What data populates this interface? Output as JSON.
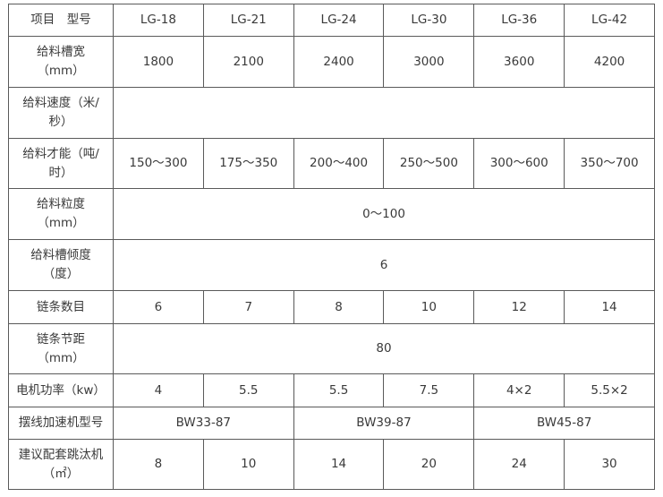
{
  "table": {
    "header": [
      "项目　型号",
      "LG-18",
      "LG-21",
      "LG-24",
      "LG-30",
      "LG-36",
      "LG-42"
    ],
    "rows": [
      {
        "label": "给料槽宽\n（mm）",
        "cells": [
          {
            "v": "1800"
          },
          {
            "v": "2100"
          },
          {
            "v": "2400"
          },
          {
            "v": "3000"
          },
          {
            "v": "3600"
          },
          {
            "v": "4200"
          }
        ]
      },
      {
        "label": "给料速度（米/\n秒）",
        "cells": [
          {
            "v": "",
            "span": 6
          }
        ]
      },
      {
        "label": "给料才能（吨/\n时）",
        "cells": [
          {
            "v": "150～300"
          },
          {
            "v": "175～350"
          },
          {
            "v": "200～400"
          },
          {
            "v": "250～500"
          },
          {
            "v": "300～600"
          },
          {
            "v": "350～700"
          }
        ]
      },
      {
        "label": "给料粒度\n（mm）",
        "cells": [
          {
            "v": "0～100",
            "span": 6
          }
        ]
      },
      {
        "label": "给料槽倾度\n（度）",
        "cells": [
          {
            "v": "6",
            "span": 6
          }
        ]
      },
      {
        "label": "链条数目",
        "cells": [
          {
            "v": "6"
          },
          {
            "v": "7"
          },
          {
            "v": "8"
          },
          {
            "v": "10"
          },
          {
            "v": "12"
          },
          {
            "v": "14"
          }
        ]
      },
      {
        "label": "链条节距\n（mm）",
        "cells": [
          {
            "v": "80",
            "span": 6
          }
        ]
      },
      {
        "label": "电机功率（kw）",
        "cells": [
          {
            "v": "4"
          },
          {
            "v": "5.5"
          },
          {
            "v": "5.5"
          },
          {
            "v": "7.5"
          },
          {
            "v": "4×2"
          },
          {
            "v": "5.5×2"
          }
        ]
      },
      {
        "label": "摆线加速机型号",
        "cells": [
          {
            "v": "BW33-87",
            "span": 2
          },
          {
            "v": "BW39-87",
            "span": 2
          },
          {
            "v": "BW45-87",
            "span": 2
          }
        ]
      },
      {
        "label": "建议配套跳汰机\n（㎡）",
        "cells": [
          {
            "v": "8"
          },
          {
            "v": "10"
          },
          {
            "v": "14"
          },
          {
            "v": "20"
          },
          {
            "v": "24"
          },
          {
            "v": "30"
          }
        ]
      }
    ]
  }
}
